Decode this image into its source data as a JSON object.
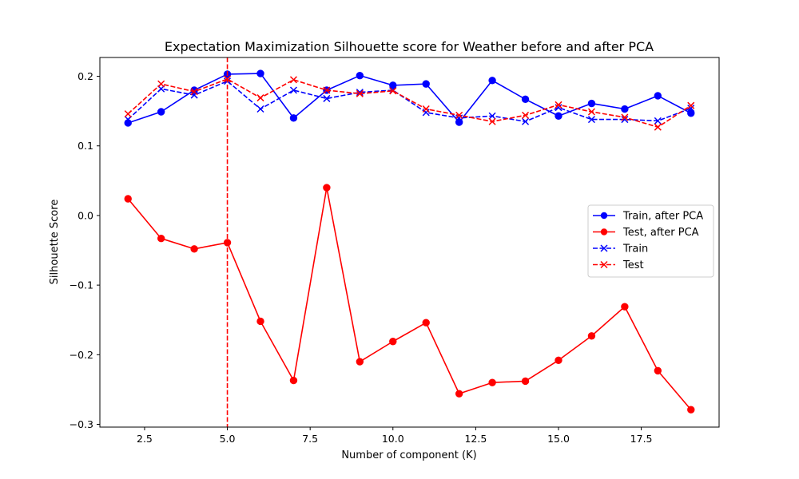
{
  "chart_data": {
    "type": "line",
    "title": "Expectation Maximization Silhouette score for Weather before and after PCA",
    "xlabel": "Number of component (K)",
    "ylabel": "Silhouette Score",
    "xlim": [
      1.15,
      19.85
    ],
    "ylim": [
      -0.304,
      0.227
    ],
    "xticks": [
      2.5,
      5.0,
      7.5,
      10.0,
      12.5,
      15.0,
      17.5
    ],
    "xtick_labels": [
      "2.5",
      "5.0",
      "7.5",
      "10.0",
      "12.5",
      "15.0",
      "17.5"
    ],
    "yticks": [
      -0.3,
      -0.2,
      -0.1,
      0.0,
      0.1,
      0.2
    ],
    "ytick_labels": [
      "−0.3",
      "−0.2",
      "−0.1",
      "0.0",
      "0.1",
      "0.2"
    ],
    "grid": false,
    "legend_position": "center-right",
    "x": [
      2,
      3,
      4,
      5,
      6,
      7,
      8,
      9,
      10,
      11,
      12,
      13,
      14,
      15,
      16,
      17,
      18,
      19
    ],
    "series": [
      {
        "name": "Train, after PCA",
        "color": "#0000ff",
        "linestyle": "solid",
        "marker": "circle",
        "values": [
          0.133,
          0.149,
          0.18,
          0.203,
          0.204,
          0.14,
          0.18,
          0.201,
          0.187,
          0.189,
          0.134,
          0.194,
          0.167,
          0.143,
          0.161,
          0.153,
          0.172,
          0.147
        ]
      },
      {
        "name": "Test, after PCA",
        "color": "#ff0000",
        "linestyle": "solid",
        "marker": "circle",
        "values": [
          0.024,
          -0.033,
          -0.048,
          -0.039,
          -0.152,
          -0.237,
          0.04,
          -0.21,
          -0.181,
          -0.154,
          -0.256,
          -0.24,
          -0.238,
          -0.208,
          -0.173,
          -0.131,
          -0.223,
          -0.279
        ]
      },
      {
        "name": "Train",
        "color": "#0000ff",
        "linestyle": "dashed",
        "marker": "x",
        "values": [
          0.138,
          0.182,
          0.173,
          0.193,
          0.153,
          0.18,
          0.168,
          0.177,
          0.18,
          0.148,
          0.14,
          0.143,
          0.135,
          0.155,
          0.138,
          0.138,
          0.136,
          0.154
        ]
      },
      {
        "name": "Test",
        "color": "#ff0000",
        "linestyle": "dashed",
        "marker": "x",
        "values": [
          0.146,
          0.189,
          0.178,
          0.196,
          0.169,
          0.195,
          0.18,
          0.175,
          0.179,
          0.153,
          0.144,
          0.135,
          0.144,
          0.159,
          0.149,
          0.141,
          0.127,
          0.158
        ]
      }
    ],
    "annotations": [
      {
        "type": "vline",
        "x": 5,
        "color": "#ff0000",
        "linestyle": "dashed"
      }
    ]
  }
}
